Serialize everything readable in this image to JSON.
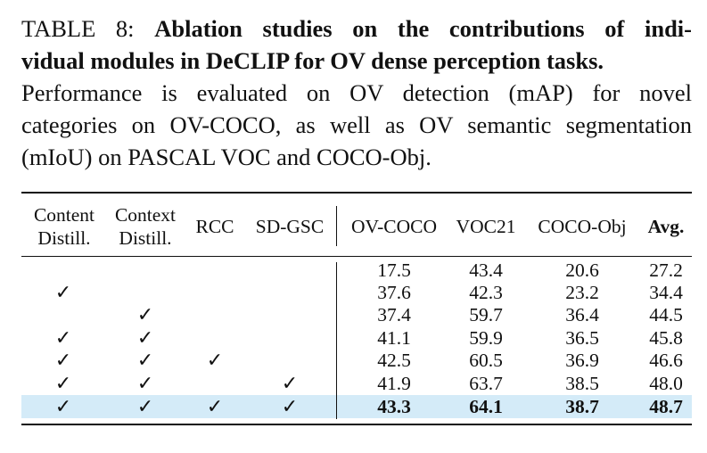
{
  "caption": {
    "label": "TABLE 8:",
    "title_line1": "Ablation studies on the contributions of indi-",
    "title_line2": "vidual modules in DeCLIP for OV dense perception tasks.",
    "desc_line1": "Performance is evaluated on OV detection (mAP) for novel",
    "desc_line2": "categories on OV-COCO, as well as OV semantic segmentation",
    "desc_line3": "(mIoU) on PASCAL VOC and COCO-Obj."
  },
  "table": {
    "headers": {
      "content_distill": [
        "Content",
        "Distill."
      ],
      "context_distill": [
        "Context",
        "Distill."
      ],
      "rcc": "RCC",
      "sd_gsc": "SD-GSC",
      "ov_coco": "OV-COCO",
      "voc21": "VOC21",
      "coco_obj": "COCO-Obj",
      "avg": "Avg."
    },
    "check_symbol": "✓",
    "rows": [
      {
        "content": "",
        "context": "",
        "rcc": "",
        "sdgsc": "",
        "ov_coco": "17.5",
        "voc21": "43.4",
        "coco_obj": "20.6",
        "avg": "27.2"
      },
      {
        "content": "✓",
        "context": "",
        "rcc": "",
        "sdgsc": "",
        "ov_coco": "37.6",
        "voc21": "42.3",
        "coco_obj": "23.2",
        "avg": "34.4"
      },
      {
        "content": "",
        "context": "✓",
        "rcc": "",
        "sdgsc": "",
        "ov_coco": "37.4",
        "voc21": "59.7",
        "coco_obj": "36.4",
        "avg": "44.5"
      },
      {
        "content": "✓",
        "context": "✓",
        "rcc": "",
        "sdgsc": "",
        "ov_coco": "41.1",
        "voc21": "59.9",
        "coco_obj": "36.5",
        "avg": "45.8"
      },
      {
        "content": "✓",
        "context": "✓",
        "rcc": "✓",
        "sdgsc": "",
        "ov_coco": "42.5",
        "voc21": "60.5",
        "coco_obj": "36.9",
        "avg": "46.6"
      },
      {
        "content": "✓",
        "context": "✓",
        "rcc": "",
        "sdgsc": "✓",
        "ov_coco": "41.9",
        "voc21": "63.7",
        "coco_obj": "38.5",
        "avg": "48.0"
      },
      {
        "content": "✓",
        "context": "✓",
        "rcc": "✓",
        "sdgsc": "✓",
        "ov_coco": "43.3",
        "voc21": "64.1",
        "coco_obj": "38.7",
        "avg": "48.7"
      }
    ],
    "highlight_color": "#d4ebf8"
  }
}
